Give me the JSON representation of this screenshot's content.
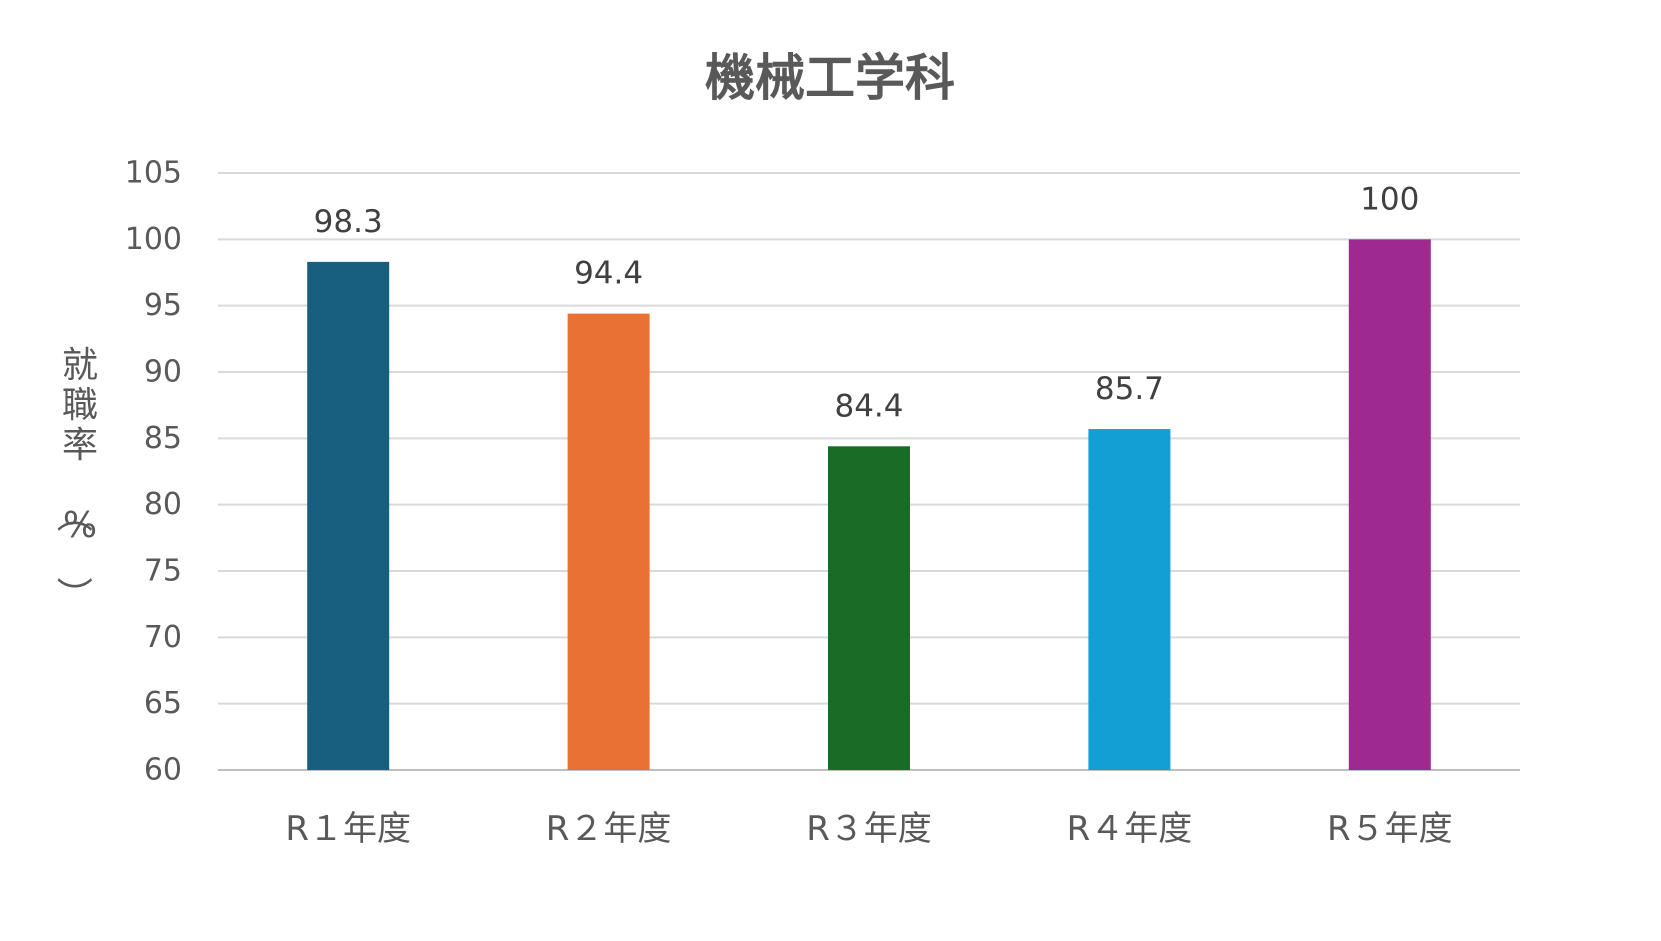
{
  "chart_data": {
    "type": "bar",
    "title": "機械工学科",
    "ylabel": "就職率（%）",
    "xlabel": "",
    "categories": [
      "R１年度",
      "R２年度",
      "R３年度",
      "R４年度",
      "R５年度"
    ],
    "values": [
      98.3,
      94.4,
      84.4,
      85.7,
      100
    ],
    "data_labels": [
      "98.3",
      "94.4",
      "84.4",
      "85.7",
      "100"
    ],
    "colors": [
      "#175e7f",
      "#e87133",
      "#1a6b25",
      "#139ed4",
      "#9e2a8f"
    ],
    "ylim": [
      60,
      105
    ],
    "yticks": [
      60,
      65,
      70,
      75,
      80,
      85,
      90,
      95,
      100,
      105
    ],
    "grid": true,
    "legend": "none"
  }
}
